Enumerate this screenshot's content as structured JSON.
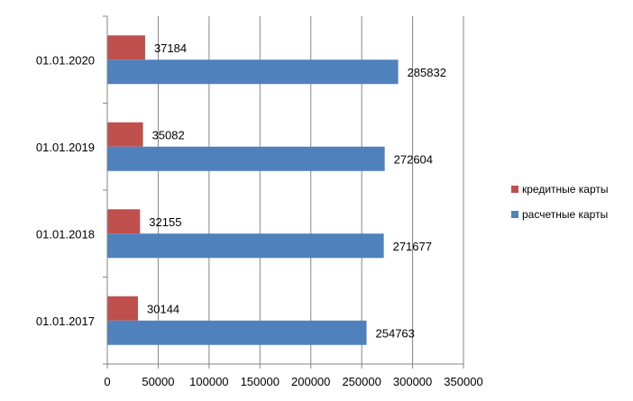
{
  "chart_data": {
    "type": "bar",
    "orientation": "horizontal",
    "title": "",
    "xlabel": "",
    "ylabel": "",
    "categories": [
      "01.01.2017",
      "01.01.2018",
      "01.01.2019",
      "01.01.2020"
    ],
    "series": [
      {
        "name": "кредитные карты",
        "color": "#C0504D",
        "values": [
          30144,
          32155,
          35082,
          37184
        ]
      },
      {
        "name": "расчетные карты",
        "color": "#4F81BD",
        "values": [
          254763,
          271677,
          272604,
          285832
        ]
      }
    ],
    "xlim": [
      0,
      350000
    ],
    "xticks": [
      0,
      50000,
      100000,
      150000,
      200000,
      250000,
      300000,
      350000
    ],
    "grid": true,
    "legend_position": "right",
    "data_labels": true
  }
}
